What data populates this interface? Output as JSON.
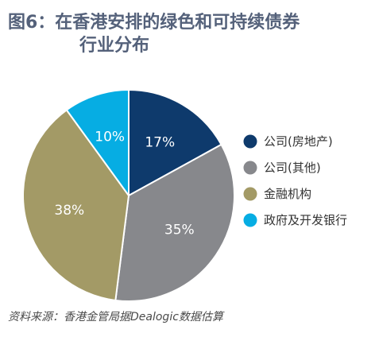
{
  "title_line1": "图6：在香港安排的绿色和可持续债券",
  "title_line2": "行业分布",
  "source": "资料来源：香港金管局据Dealogic数据估算",
  "chart_data": {
    "type": "pie",
    "title": "图6：在香港安排的绿色和可持续债券行业分布",
    "unit": "%",
    "legend_position": "right",
    "slices": [
      {
        "label": "公司(房地产)",
        "value": 17,
        "display": "17%",
        "color": "#0e3a6c"
      },
      {
        "label": "公司(其他)",
        "value": 35,
        "display": "35%",
        "color": "#87888c"
      },
      {
        "label": "金融机构",
        "value": 38,
        "display": "38%",
        "color": "#a39a66"
      },
      {
        "label": "政府及开发银行",
        "value": 10,
        "display": "10%",
        "color": "#06ade3"
      }
    ]
  }
}
